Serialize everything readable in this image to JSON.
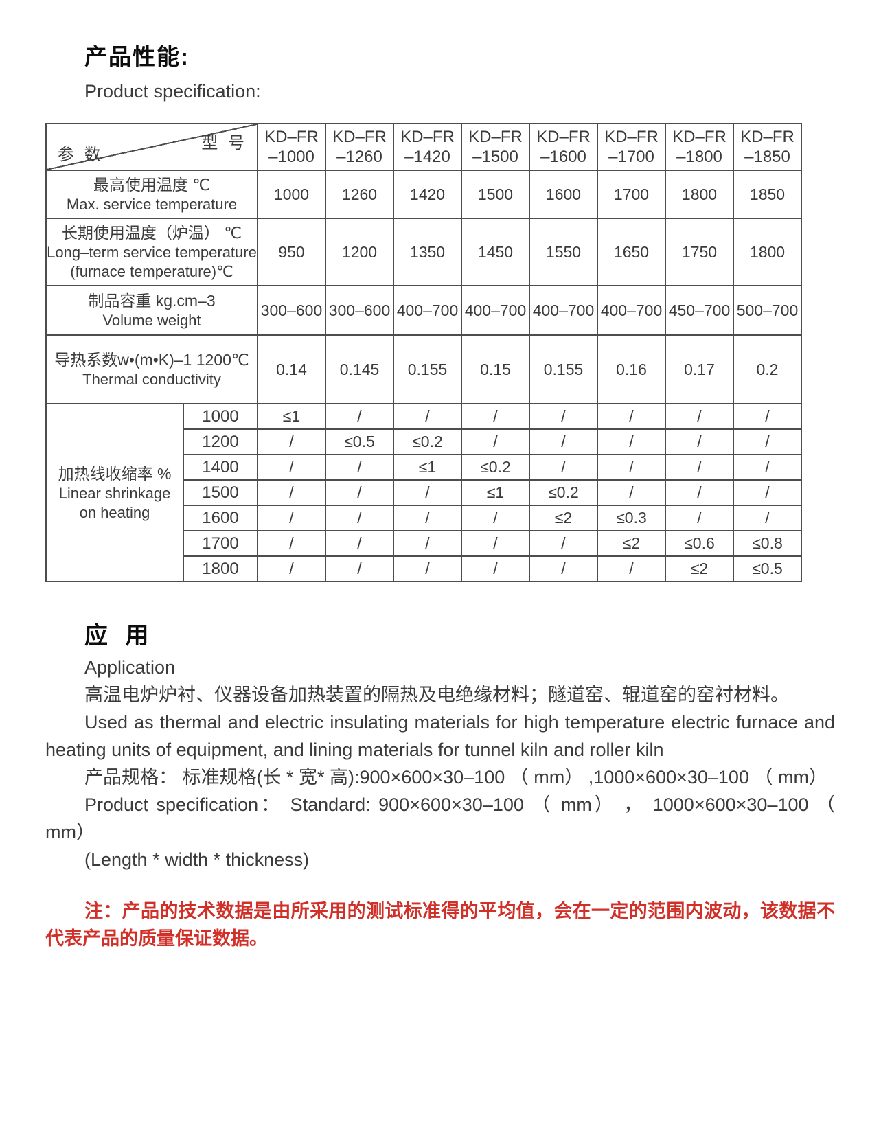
{
  "header": {
    "title_zh": "产品性能:",
    "title_en": "Product specification:"
  },
  "table": {
    "corner": {
      "top_right": "型 号",
      "bottom_left": "参 数"
    },
    "models": [
      [
        "KD–FR",
        "–1000"
      ],
      [
        "KD–FR",
        "–1260"
      ],
      [
        "KD–FR",
        "–1420"
      ],
      [
        "KD–FR",
        "–1500"
      ],
      [
        "KD–FR",
        "–1600"
      ],
      [
        "KD–FR",
        "–1700"
      ],
      [
        "KD–FR",
        "–1800"
      ],
      [
        "KD–FR",
        "–1850"
      ]
    ],
    "param_rows": [
      {
        "label_lines": [
          "最高使用温度 ℃",
          "Max. service temperature"
        ],
        "values": [
          "1000",
          "1260",
          "1420",
          "1500",
          "1600",
          "1700",
          "1800",
          "1850"
        ]
      },
      {
        "label_lines": [
          "长期使用温度（炉温） ℃",
          "Long–term service temperature",
          "(furnace temperature)℃"
        ],
        "values": [
          "950",
          "1200",
          "1350",
          "1450",
          "1550",
          "1650",
          "1750",
          "1800"
        ]
      },
      {
        "label_lines": [
          "制品容重 kg.cm–3",
          "Volume weight"
        ],
        "values": [
          "300–600",
          "300–600",
          "400–700",
          "400–700",
          "400–700",
          "400–700",
          "450–700",
          "500–700"
        ]
      },
      {
        "label_lines": [
          "导热系数w•(m•K)–1 1200℃",
          "Thermal conductivity"
        ],
        "values": [
          "0.14",
          "0.145",
          "0.155",
          "0.15",
          "0.155",
          "0.16",
          "0.17",
          "0.2"
        ]
      }
    ],
    "shrinkage": {
      "label_lines": [
        "加热线收缩率 %",
        "Linear shrinkage",
        "on heating"
      ],
      "rows": [
        {
          "temp": "1000",
          "values": [
            "≤1",
            "/",
            "/",
            "/",
            "/",
            "/",
            "/",
            "/"
          ]
        },
        {
          "temp": "1200",
          "values": [
            "/",
            "≤0.5",
            "≤0.2",
            "/",
            "/",
            "/",
            "/",
            "/"
          ]
        },
        {
          "temp": "1400",
          "values": [
            "/",
            "/",
            "≤1",
            "≤0.2",
            "/",
            "/",
            "/",
            "/"
          ]
        },
        {
          "temp": "1500",
          "values": [
            "/",
            "/",
            "/",
            "≤1",
            "≤0.2",
            "/",
            "/",
            "/"
          ]
        },
        {
          "temp": "1600",
          "values": [
            "/",
            "/",
            "/",
            "/",
            "≤2",
            "≤0.3",
            "/",
            "/"
          ]
        },
        {
          "temp": "1700",
          "values": [
            "/",
            "/",
            "/",
            "/",
            "/",
            "≤2",
            "≤0.6",
            "≤0.8"
          ]
        },
        {
          "temp": "1800",
          "values": [
            "/",
            "/",
            "/",
            "/",
            "/",
            "/",
            "≤2",
            "≤0.5"
          ]
        }
      ]
    }
  },
  "application": {
    "heading_zh": "应 用",
    "heading_en": "Application",
    "para_zh": "高温电炉炉衬、仪器设备加热装置的隔热及电绝缘材料；隧道窑、辊道窑的窑衬材料。",
    "para_en": "Used as thermal and electric insulating materials for high temperature electric furnace and heating units of equipment, and lining materials for tunnel kiln and roller kiln",
    "spec_zh": "产品规格： 标准规格(长 * 宽* 高):900×600×30–100 （ mm） ,1000×600×30–100 （ mm）",
    "spec_en": "Product specification： Standard: 900×600×30–100 （ mm） ， 1000×600×30–100 （ mm）",
    "dims_note": "(Length * width * thickness)",
    "note": "注：产品的技术数据是由所采用的测试标准得的平均值，会在一定的范围内波动，该数据不代表产品的质量保证数据。"
  },
  "colors": {
    "note_red": "#d03028",
    "text": "#3b3b3b",
    "border": "#4d4d4d"
  }
}
